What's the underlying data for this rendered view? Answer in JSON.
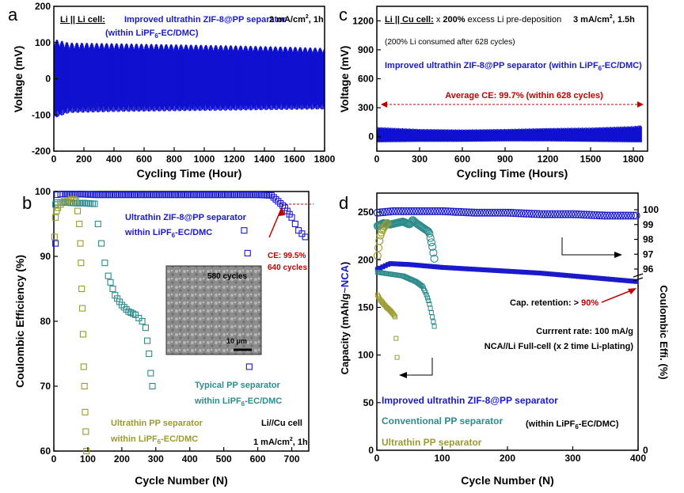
{
  "panel_letters": {
    "a": "a",
    "b": "b",
    "c": "c",
    "d": "d"
  },
  "chart_data": [
    {
      "panel": "a",
      "type": "line",
      "xlabel": "Cycling Time (Hour)",
      "ylabel": "Voltage (mV)",
      "xlim": [
        0,
        1800
      ],
      "ylim": [
        -200,
        200
      ],
      "xticks": [
        "0",
        "200",
        "400",
        "600",
        "800",
        "1000",
        "1200",
        "1400",
        "1600",
        "1800"
      ],
      "yticks": [
        "-200",
        "-100",
        "0",
        "100",
        "200"
      ],
      "annotations": {
        "cell": "Li || Li cell:",
        "desc1": "Improved ultrathin ZIF-8@PP separator",
        "desc2a": "(within LiPF",
        "desc2sub": "6",
        "desc2b": "-EC/DMC)",
        "rate": "2 mA/cm",
        "rate_sup": "2",
        "rate_tail": ", 1h"
      },
      "series": [
        {
          "color": "#1010d0",
          "x": [
            0,
            100,
            400,
            800,
            1200,
            1600,
            1800
          ],
          "upper": [
            110,
            100,
            98,
            95,
            92,
            88,
            85
          ],
          "lower": [
            -110,
            -95,
            -92,
            -90,
            -88,
            -86,
            -85
          ]
        }
      ]
    },
    {
      "panel": "b",
      "type": "scatter",
      "xlabel": "Cycle Number (N)",
      "ylabel": "Coulombic Efficiency (%)",
      "xlim": [
        0,
        750
      ],
      "ylim": [
        60,
        100
      ],
      "xticks": [
        "0",
        "100",
        "200",
        "300",
        "400",
        "500",
        "600",
        "700"
      ],
      "yticks": [
        "60",
        "70",
        "80",
        "90",
        "100"
      ],
      "annotations": {
        "zif1": "Ultrathin ZIF-8@PP separator",
        "zif2a": "within LiPF",
        "zif2sub": "6",
        "zif2b": "-EC/DMC",
        "ce1": "CE: 99.5%",
        "ce2": "640 cycles",
        "pp1": "Typical PP separator",
        "pp2a": "within LiPF",
        "pp2sub": "6",
        "pp2b": "-EC/DMC",
        "upp1": "Ultrathin PP separator",
        "upp2a": "within LiPF",
        "upp2sub": "6",
        "upp2b": "-EC/DMC",
        "cell": "Li//Cu cell",
        "rate": "1 mA/cm",
        "rate_sup": "2",
        "rate_tail": ", 1h",
        "inset_cycles": "580 cycles",
        "inset_scale": "10 μm"
      },
      "series": [
        {
          "color": "#1a1acc",
          "x": [
            5,
            10,
            20,
            40,
            80,
            120,
            200,
            300,
            400,
            500,
            600,
            640,
            660,
            680,
            700,
            710,
            720,
            730,
            740,
            560,
            570,
            575
          ],
          "y": [
            92,
            99.5,
            99.6,
            99.6,
            99.6,
            99.5,
            99.5,
            99.5,
            99.5,
            99.5,
            99.5,
            99.4,
            98.5,
            97.5,
            96,
            95,
            94,
            93.5,
            93,
            94,
            90.5,
            73
          ]
        },
        {
          "color": "#2e8b8b",
          "x": [
            5,
            10,
            20,
            40,
            70,
            90,
            120,
            130,
            140,
            150,
            160,
            180,
            200,
            220,
            240,
            250,
            260,
            270,
            275,
            280,
            285,
            290
          ],
          "y": [
            98,
            98.3,
            98.3,
            98.3,
            98.2,
            98.2,
            98.1,
            95,
            92,
            89,
            87,
            84,
            82.5,
            81.5,
            81,
            80.5,
            80,
            79,
            77,
            75,
            72,
            70
          ]
        },
        {
          "color": "#9a9a30",
          "x": [
            2,
            5,
            8,
            12,
            20,
            30,
            40,
            50,
            60,
            65,
            70,
            75,
            78,
            80,
            82,
            84,
            86,
            88,
            90,
            92,
            94,
            96
          ],
          "y": [
            93,
            96,
            97,
            97.5,
            98,
            98.5,
            98.5,
            98.8,
            98.8,
            98.5,
            97,
            95,
            92,
            89,
            85,
            82,
            78,
            73,
            70,
            66,
            63,
            60
          ]
        }
      ]
    },
    {
      "panel": "c",
      "type": "line",
      "xlabel": "Cycling Time (Hours)",
      "ylabel": "Voltage (mV)",
      "xlim": [
        0,
        1900
      ],
      "ylim": [
        -150,
        1350
      ],
      "xticks": [
        "0",
        "300",
        "600",
        "900",
        "1200",
        "1500",
        "1800"
      ],
      "yticks": [
        "0",
        "300",
        "600",
        "900",
        "1200"
      ],
      "annotations": {
        "cell": "Li || Cu cell:",
        "excess_a": " x ",
        "excess_b": "200%",
        "excess_c": " excess Li pre-deposition",
        "rate": "3 mA/cm",
        "rate_sup": "2",
        "rate_tail": ", 1.5h",
        "consumed": "(200% Li consumed after 628 cycles)",
        "desc_a": "Improved ultrathin ZIF-8@PP separator (within LiPF",
        "desc_sub": "6",
        "desc_b": "-EC/DMC)",
        "avg": "Average CE: 99.7% (within 628 cycles)"
      },
      "series": [
        {
          "color": "#1010d0",
          "x": [
            0,
            300,
            600,
            900,
            1200,
            1500,
            1800,
            1860
          ],
          "upper": [
            100,
            80,
            75,
            80,
            90,
            95,
            110,
            120
          ],
          "lower": [
            -60,
            -55,
            -55,
            -50,
            -50,
            -55,
            -60,
            -60
          ]
        }
      ]
    },
    {
      "panel": "d",
      "type": "scatter",
      "xlabel": "Cycle Number (N)",
      "ylabel": "Capacity (mAh/g~NCA)",
      "ylabel_a": "Capacity (mAh/g",
      "ylabel_b": "~NCA",
      "ylabel_c": ")",
      "ylabel2": "Coulombic Effi. (%)",
      "xlim": [
        0,
        400
      ],
      "ylim": [
        0,
        270
      ],
      "xticks": [
        "0",
        "100",
        "200",
        "300",
        "400"
      ],
      "yticks": [
        "0",
        "50",
        "100",
        "150",
        "200",
        "250"
      ],
      "y2ticks": [
        "0",
        "96",
        "97",
        "98",
        "99",
        "100"
      ],
      "annotations": {
        "retention_a": "Cap. retention: > ",
        "retention_b": "90%",
        "rate": "Currrent rate: 100 mA/g",
        "fullcell": "NCA//Li Full-cell (x 2 time Li-plating)",
        "leg1": "Improved ultrathin ZIF-8@PP separator",
        "leg2": "Conventional PP separator",
        "leg3": "Ultrathin PP separator",
        "within_a": "(within LiPF",
        "within_sub": "6",
        "within_b": "-EC/DMC)"
      },
      "series": [
        {
          "name": "Improved ultrathin ZIF-8@PP separator",
          "color": "#1a1acc",
          "capacity_x": [
            1,
            20,
            50,
            100,
            150,
            200,
            250,
            300,
            350,
            400
          ],
          "capacity_y": [
            190,
            196,
            195,
            192,
            190,
            188,
            186,
            183,
            180,
            177
          ],
          "ce_x": [
            1,
            25,
            50,
            100,
            150,
            200,
            250,
            300,
            350,
            400
          ],
          "ce_y": [
            99.8,
            99.9,
            99.9,
            99.9,
            99.8,
            99.8,
            99.7,
            99.7,
            99.6,
            99.6
          ]
        },
        {
          "name": "Conventional PP separator",
          "color": "#2e8b8b",
          "capacity_x": [
            1,
            10,
            20,
            30,
            40,
            50,
            60,
            70,
            75,
            80,
            85,
            88
          ],
          "capacity_y": [
            187,
            186,
            185,
            184,
            183,
            180,
            177,
            172,
            165,
            155,
            140,
            130
          ],
          "ce_x": [
            1,
            10,
            20,
            30,
            40,
            50,
            55,
            60,
            70,
            80,
            85,
            88
          ],
          "ce_y": [
            98.9,
            99.1,
            99.0,
            99.1,
            99.2,
            99.0,
            99.3,
            99.1,
            98.8,
            98.5,
            97.5,
            96.7
          ]
        },
        {
          "name": "Ultrathin PP separator",
          "color": "#9a9a30",
          "capacity_x": [
            1,
            5,
            10,
            15,
            20,
            25,
            28,
            30,
            32
          ],
          "capacity_y": [
            163,
            158,
            154,
            150,
            147,
            143,
            140,
            110,
            85
          ],
          "ce_x": [
            1,
            3,
            5,
            8,
            12,
            16
          ],
          "ce_y": [
            96.9,
            97.6,
            98.2,
            98.6,
            98.9,
            99.1
          ]
        }
      ]
    }
  ]
}
